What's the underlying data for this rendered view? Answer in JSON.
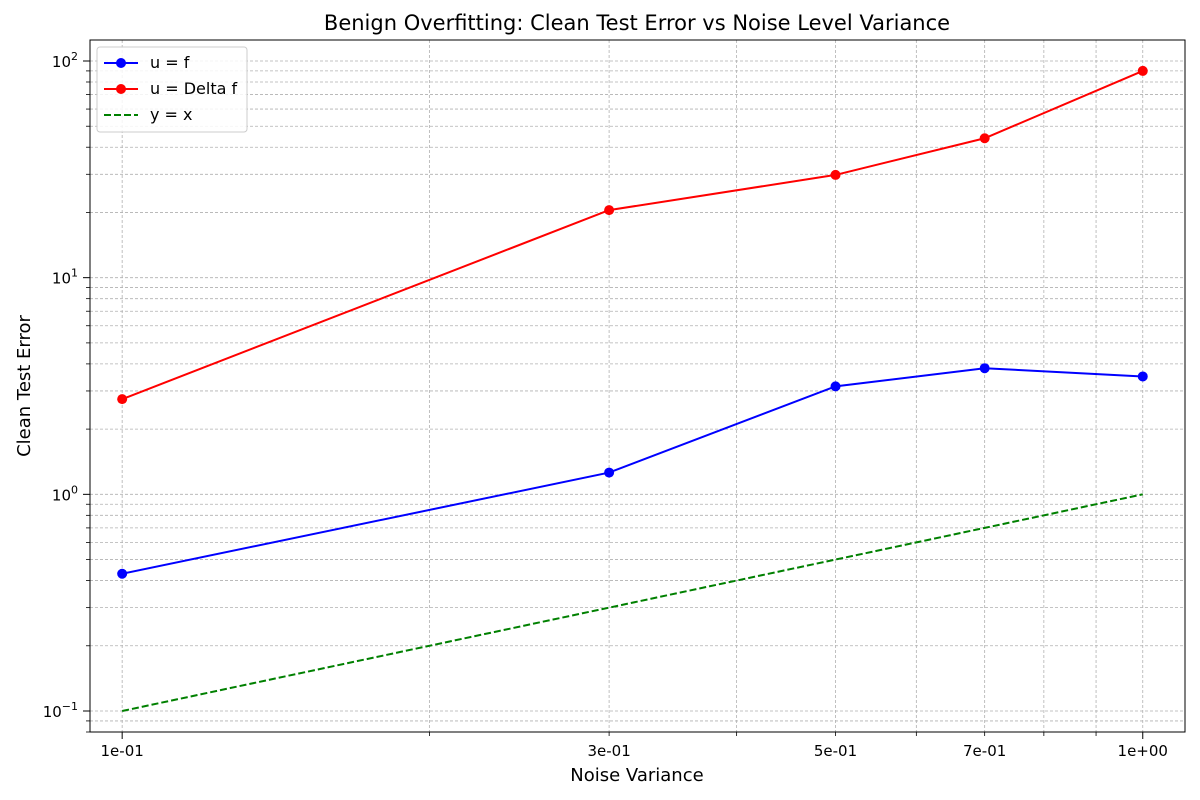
{
  "chart_data": {
    "type": "line",
    "title": "Benign Overfitting: Clean Test Error vs Noise Level Variance",
    "xlabel": "Noise Variance",
    "ylabel": "Clean Test Error",
    "xscale": "log",
    "yscale": "log",
    "x": [
      0.1,
      0.3,
      0.5,
      0.7,
      1.0
    ],
    "xtick_labels": [
      "1e-01",
      "3e-01",
      "5e-01",
      "7e-01",
      "1e+00"
    ],
    "ytick_labels": [
      {
        "base": "10",
        "exp": "−1",
        "value": 0.1
      },
      {
        "base": "10",
        "exp": "0",
        "value": 1
      },
      {
        "base": "10",
        "exp": "1",
        "value": 10
      },
      {
        "base": "10",
        "exp": "2",
        "value": 100
      }
    ],
    "xlim": [
      0.093,
      1.1
    ],
    "ylim": [
      0.08,
      125
    ],
    "grid": true,
    "legend_position": "upper-left",
    "series": [
      {
        "name": "u = f",
        "color": "#0000ff",
        "style": "solid",
        "marker": "circle",
        "values": [
          0.43,
          1.26,
          3.15,
          3.82,
          3.5
        ]
      },
      {
        "name": "u = Delta f",
        "color": "#ff0000",
        "style": "solid",
        "marker": "circle",
        "values": [
          2.75,
          20.5,
          29.8,
          44.0,
          90.0
        ]
      },
      {
        "name": "y = x",
        "color": "#008000",
        "style": "dashed",
        "marker": "none",
        "values": [
          0.1,
          0.3,
          0.5,
          0.7,
          1.0
        ]
      }
    ]
  }
}
